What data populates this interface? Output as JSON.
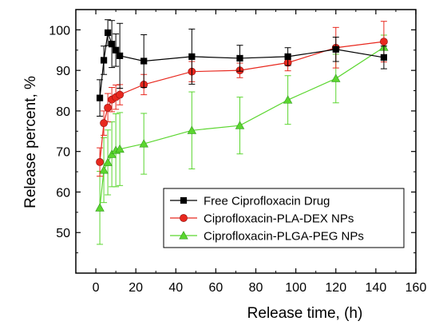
{
  "chart_data": {
    "type": "scatter",
    "title": "",
    "xlabel": "Release time, (h)",
    "ylabel": "Release percent, %",
    "xlim": [
      -10,
      160
    ],
    "ylim": [
      40,
      105
    ],
    "xticks": [
      0,
      20,
      40,
      60,
      80,
      100,
      120,
      140,
      160
    ],
    "yticks": [
      50,
      60,
      70,
      80,
      90,
      100
    ],
    "grid": false,
    "legend_position": "bottom-right",
    "series": [
      {
        "name": "Free Ciprofloxacin Drug",
        "color": "#000000",
        "marker": "square",
        "x": [
          2,
          4,
          6,
          8,
          10,
          12,
          24,
          48,
          72,
          96,
          120,
          144
        ],
        "y": [
          83.2,
          92.5,
          99.3,
          96.5,
          95.0,
          93.6,
          92.3,
          93.4,
          93.0,
          93.4,
          95.2,
          93.2
        ],
        "error": [
          4.5,
          3.5,
          3.2,
          5.8,
          4.0,
          8.0,
          6.5,
          6.8,
          3.2,
          2.2,
          3.0,
          2.8
        ]
      },
      {
        "name": "Ciprofloxacin-PLA-DEX NPs",
        "color": "#e8281e",
        "marker": "circle",
        "x": [
          2,
          4,
          6,
          8,
          10,
          12,
          24,
          48,
          72,
          96,
          120,
          144
        ],
        "y": [
          67.4,
          77.0,
          80.8,
          82.8,
          83.4,
          84.0,
          86.5,
          89.7,
          90.0,
          91.9,
          95.6,
          97.1
        ],
        "error": [
          3.5,
          3.0,
          3.5,
          3.0,
          3.0,
          2.5,
          2.5,
          2.5,
          1.8,
          2.0,
          5.0,
          5.0
        ]
      },
      {
        "name": "Ciprofloxacin-PLGA-PEG NPs",
        "color": "#5bd62f",
        "marker": "triangle",
        "x": [
          2,
          4,
          6,
          8,
          10,
          12,
          24,
          48,
          72,
          96,
          120,
          144
        ],
        "y": [
          56.1,
          65.4,
          67.3,
          69.3,
          70.3,
          70.6,
          71.9,
          75.2,
          76.4,
          82.7,
          88.0,
          95.7
        ],
        "error": [
          9.0,
          8.0,
          8.0,
          8.0,
          9.0,
          9.0,
          7.5,
          9.5,
          7.0,
          6.0,
          6.0,
          3.0
        ]
      }
    ]
  }
}
